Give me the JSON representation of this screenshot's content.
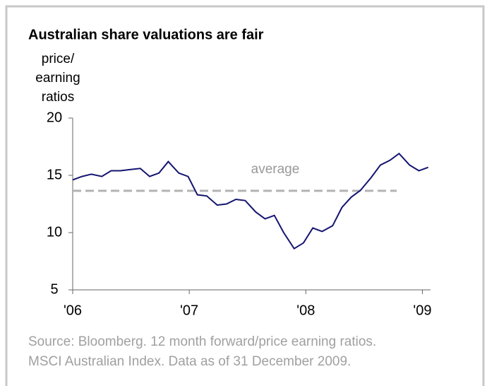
{
  "chart_data": {
    "type": "line",
    "title": "Australian share valuations are fair",
    "y_label": [
      "price/",
      "earning",
      "ratios"
    ],
    "source": [
      "Source: Bloomberg. 12 month forward/price earning ratios.",
      "MSCI Australian Index. Data as of 31 December 2009."
    ],
    "x": [
      2006.0,
      2006.08,
      2006.16,
      2006.25,
      2006.33,
      2006.41,
      2006.49,
      2006.58,
      2006.66,
      2006.74,
      2006.82,
      2006.91,
      2006.99,
      2007.07,
      2007.15,
      2007.24,
      2007.32,
      2007.4,
      2007.48,
      2007.57,
      2007.65,
      2007.73,
      2007.81,
      2007.9,
      2007.98,
      2008.06,
      2008.14,
      2008.23,
      2008.31,
      2008.39,
      2008.47,
      2008.56,
      2008.64,
      2008.72,
      2008.8,
      2008.89,
      2008.97,
      2009.05
    ],
    "series": [
      {
        "name": "price/earning ratio",
        "color": "#141470",
        "values": [
          14.6,
          14.9,
          15.1,
          14.9,
          15.4,
          15.4,
          15.5,
          15.6,
          14.9,
          15.2,
          16.2,
          15.2,
          14.9,
          13.3,
          13.2,
          12.4,
          12.5,
          12.9,
          12.8,
          11.8,
          11.2,
          11.5,
          10.0,
          8.6,
          9.1,
          10.4,
          10.1,
          10.6,
          12.2,
          13.1,
          13.7,
          14.8,
          15.9,
          16.3,
          16.9,
          15.9,
          15.4,
          15.7
        ]
      }
    ],
    "average": {
      "label": "average",
      "value": 13.65,
      "x": [
        2006,
        2008.78
      ],
      "color": "#b3b3b3"
    },
    "xlim": [
      2006,
      2009.07
    ],
    "xticks": [
      {
        "value": 2006,
        "label": "'06"
      },
      {
        "value": 2007,
        "label": "'07"
      },
      {
        "value": 2008,
        "label": "'08"
      },
      {
        "value": 2009,
        "label": "'09"
      }
    ],
    "ylim": [
      5,
      20
    ],
    "yticks": [
      5,
      10,
      15,
      20
    ],
    "grid": false
  }
}
